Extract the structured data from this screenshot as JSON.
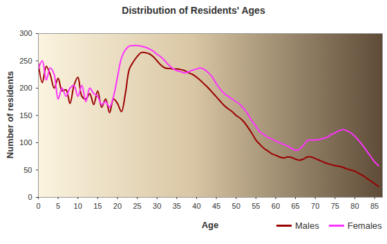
{
  "chart_data": {
    "type": "line",
    "title": "Distribution of Residents' Ages",
    "x_label": "Age",
    "y_label": "Number of residents",
    "x": [
      0,
      1,
      2,
      3,
      4,
      5,
      6,
      7,
      8,
      9,
      10,
      11,
      12,
      13,
      14,
      15,
      16,
      17,
      18,
      19,
      20,
      21,
      22,
      23,
      24,
      25,
      26,
      27,
      28,
      29,
      30,
      31,
      32,
      33,
      34,
      35,
      36,
      37,
      38,
      39,
      40,
      41,
      42,
      43,
      44,
      45,
      46,
      47,
      48,
      49,
      50,
      51,
      52,
      53,
      54,
      55,
      56,
      57,
      58,
      59,
      60,
      61,
      62,
      63,
      64,
      65,
      66,
      67,
      68,
      69,
      70,
      71,
      72,
      73,
      74,
      75,
      76,
      77,
      78,
      79,
      80,
      81,
      82,
      83,
      84,
      85,
      86
    ],
    "series": [
      {
        "name": "Males",
        "color": "#990000",
        "values": [
          245,
          210,
          240,
          225,
          200,
          218,
          195,
          197,
          172,
          205,
          220,
          185,
          180,
          190,
          170,
          195,
          165,
          180,
          155,
          180,
          172,
          157,
          190,
          235,
          248,
          258,
          265,
          265,
          263,
          258,
          250,
          242,
          237,
          236,
          235,
          235,
          234,
          232,
          228,
          225,
          220,
          214,
          207,
          200,
          192,
          184,
          176,
          168,
          162,
          157,
          150,
          145,
          138,
          128,
          117,
          105,
          97,
          90,
          85,
          80,
          77,
          74,
          72,
          74,
          73,
          70,
          68,
          70,
          74,
          74,
          71,
          68,
          65,
          62,
          60,
          58,
          57,
          55,
          52,
          50,
          48,
          44,
          40,
          35,
          30,
          25,
          20
        ]
      },
      {
        "name": "Females",
        "color": "#ff33ff",
        "values": [
          235,
          250,
          215,
          237,
          225,
          180,
          200,
          185,
          200,
          205,
          185,
          205,
          175,
          200,
          190,
          185,
          170,
          175,
          165,
          185,
          220,
          255,
          270,
          277,
          278,
          278,
          277,
          275,
          272,
          268,
          262,
          257,
          250,
          242,
          236,
          232,
          230,
          228,
          230,
          233,
          235,
          237,
          234,
          228,
          220,
          208,
          198,
          190,
          185,
          180,
          175,
          170,
          162,
          152,
          140,
          130,
          120,
          115,
          110,
          107,
          103,
          100,
          97,
          94,
          90,
          86,
          88,
          95,
          104,
          105,
          105,
          106,
          108,
          110,
          115,
          118,
          122,
          124,
          122,
          118,
          112,
          104,
          95,
          85,
          75,
          65,
          58
        ]
      }
    ],
    "xlim": [
      0,
      87
    ],
    "ylim": [
      0,
      300
    ],
    "xticks": [
      0,
      5,
      10,
      15,
      20,
      25,
      30,
      35,
      40,
      45,
      50,
      55,
      60,
      65,
      70,
      75,
      80,
      85
    ],
    "yticks": [
      0,
      50,
      100,
      150,
      200,
      250,
      300
    ],
    "legend": "bottom right"
  }
}
